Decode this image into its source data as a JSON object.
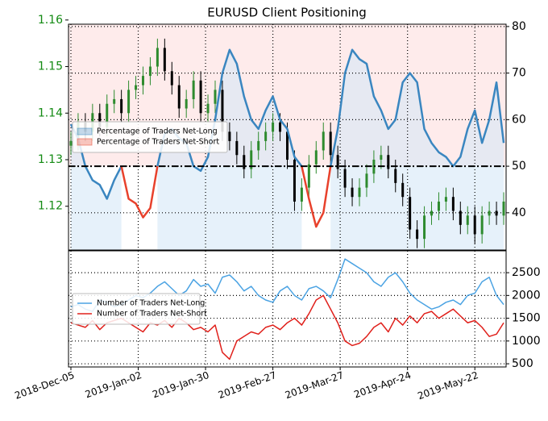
{
  "chart_data": [
    {
      "type": "candlestick",
      "title": "EURUSD Client Positioning",
      "x": [
        0,
        3,
        6,
        9,
        12,
        15,
        18,
        21,
        24,
        27,
        30,
        33,
        36,
        39,
        42,
        45,
        48,
        51,
        54,
        57,
        60,
        63,
        66,
        69,
        72,
        75,
        78,
        81,
        84,
        87,
        90,
        93,
        96,
        99,
        102,
        105,
        108,
        111,
        114,
        117,
        120,
        123,
        126,
        129,
        132,
        135,
        138,
        141,
        144,
        147,
        150,
        153,
        156,
        159,
        162,
        165,
        168,
        171,
        174,
        177,
        180
      ],
      "open": [
        1.133,
        1.134,
        1.138,
        1.136,
        1.14,
        1.137,
        1.142,
        1.143,
        1.14,
        1.145,
        1.146,
        1.148,
        1.15,
        1.154,
        1.149,
        1.146,
        1.141,
        1.143,
        1.147,
        1.14,
        1.142,
        1.145,
        1.136,
        1.134,
        1.131,
        1.128,
        1.132,
        1.134,
        1.136,
        1.138,
        1.136,
        1.13,
        1.121,
        1.124,
        1.129,
        1.132,
        1.136,
        1.131,
        1.128,
        1.124,
        1.122,
        1.124,
        1.127,
        1.13,
        1.131,
        1.128,
        1.125,
        1.122,
        1.115,
        1.113,
        1.118,
        1.119,
        1.121,
        1.122,
        1.119,
        1.116,
        1.118,
        1.114,
        1.118,
        1.119,
        1.118
      ],
      "high": [
        1.136,
        1.14,
        1.14,
        1.142,
        1.142,
        1.144,
        1.145,
        1.145,
        1.147,
        1.148,
        1.15,
        1.152,
        1.156,
        1.156,
        1.151,
        1.148,
        1.145,
        1.149,
        1.149,
        1.144,
        1.147,
        1.147,
        1.138,
        1.136,
        1.133,
        1.134,
        1.136,
        1.138,
        1.14,
        1.14,
        1.138,
        1.132,
        1.126,
        1.131,
        1.134,
        1.138,
        1.138,
        1.133,
        1.13,
        1.126,
        1.126,
        1.129,
        1.132,
        1.133,
        1.133,
        1.13,
        1.127,
        1.124,
        1.117,
        1.12,
        1.121,
        1.123,
        1.124,
        1.124,
        1.121,
        1.12,
        1.12,
        1.12,
        1.121,
        1.121,
        1.123
      ],
      "low": [
        1.131,
        1.132,
        1.134,
        1.134,
        1.135,
        1.135,
        1.14,
        1.138,
        1.138,
        1.143,
        1.144,
        1.146,
        1.148,
        1.147,
        1.144,
        1.139,
        1.139,
        1.141,
        1.138,
        1.138,
        1.14,
        1.134,
        1.132,
        1.129,
        1.126,
        1.126,
        1.13,
        1.132,
        1.134,
        1.134,
        1.128,
        1.119,
        1.119,
        1.122,
        1.127,
        1.13,
        1.129,
        1.126,
        1.122,
        1.12,
        1.12,
        1.122,
        1.125,
        1.128,
        1.126,
        1.123,
        1.12,
        1.113,
        1.111,
        1.111,
        1.116,
        1.117,
        1.119,
        1.117,
        1.114,
        1.114,
        1.112,
        1.112,
        1.116,
        1.116,
        1.116
      ],
      "close": [
        1.134,
        1.138,
        1.136,
        1.14,
        1.137,
        1.142,
        1.143,
        1.14,
        1.145,
        1.146,
        1.148,
        1.15,
        1.154,
        1.149,
        1.146,
        1.141,
        1.143,
        1.147,
        1.14,
        1.142,
        1.145,
        1.136,
        1.134,
        1.131,
        1.128,
        1.132,
        1.134,
        1.136,
        1.138,
        1.136,
        1.13,
        1.121,
        1.124,
        1.129,
        1.132,
        1.136,
        1.131,
        1.128,
        1.124,
        1.122,
        1.124,
        1.127,
        1.13,
        1.131,
        1.128,
        1.125,
        1.122,
        1.115,
        1.113,
        1.118,
        1.119,
        1.121,
        1.122,
        1.119,
        1.116,
        1.118,
        1.114,
        1.118,
        1.119,
        1.118,
        1.121
      ],
      "up_color": "#2e8b2e",
      "down_color": "#000000",
      "ylim": [
        1.1106,
        1.1591
      ],
      "yticks": [
        1.12,
        1.13,
        1.14,
        1.15,
        1.16
      ],
      "ytick_color": "#138a13",
      "y2lim": [
        32,
        80.5
      ],
      "y2ticks": [
        40,
        50,
        60,
        70,
        80
      ],
      "reference_line": 50,
      "short_bg_color": "#fde3e3",
      "long_bg_color": "#d6e8f7",
      "legend": "center left",
      "grid": true,
      "series": [
        {
          "name": "Percentage of Traders Net-Long",
          "color": "#3a86c0",
          "axis": "y2",
          "values": [
            59,
            56,
            50,
            47,
            46,
            43,
            47,
            50,
            null,
            null,
            null,
            null,
            50,
            57,
            58,
            56,
            55,
            50,
            49,
            52,
            60,
            70,
            75,
            72,
            65,
            60,
            58,
            62,
            65,
            60,
            58,
            52,
            50,
            null,
            null,
            null,
            50,
            58,
            70,
            75,
            73,
            72,
            65,
            62,
            58,
            60,
            68,
            70,
            68,
            58,
            55,
            53,
            52,
            50,
            52,
            58,
            62,
            55,
            60,
            68,
            55
          ]
        },
        {
          "name": "Percentage of Traders Net-Short",
          "color": "#e8412c",
          "axis": "y2",
          "values": [
            null,
            null,
            null,
            null,
            null,
            null,
            null,
            50,
            43,
            42,
            39,
            41,
            50,
            null,
            null,
            null,
            null,
            null,
            null,
            null,
            null,
            null,
            null,
            null,
            null,
            null,
            null,
            null,
            null,
            null,
            null,
            null,
            50,
            43,
            37,
            40,
            50,
            null,
            null,
            null,
            null,
            null,
            null,
            null,
            null,
            null,
            null,
            null,
            null,
            null,
            null,
            null,
            null,
            null,
            null,
            null,
            null,
            null,
            null,
            null,
            null
          ]
        }
      ]
    },
    {
      "type": "line",
      "x": [
        0,
        3,
        6,
        9,
        12,
        15,
        18,
        21,
        24,
        27,
        30,
        33,
        36,
        39,
        42,
        45,
        48,
        51,
        54,
        57,
        60,
        63,
        66,
        69,
        72,
        75,
        78,
        81,
        84,
        87,
        90,
        93,
        96,
        99,
        102,
        105,
        108,
        111,
        114,
        117,
        120,
        123,
        126,
        129,
        132,
        135,
        138,
        141,
        144,
        147,
        150,
        153,
        156,
        159,
        162,
        165,
        168,
        171,
        174,
        177,
        180
      ],
      "xlim": [
        -1,
        181
      ],
      "xticks": [
        {
          "value": 0,
          "label": "2018-Dec-05"
        },
        {
          "value": 28,
          "label": "2019-Jan-02"
        },
        {
          "value": 56,
          "label": "2019-Jan-30"
        },
        {
          "value": 84,
          "label": "2019-Feb-27"
        },
        {
          "value": 112,
          "label": "2019-Mar-27"
        },
        {
          "value": 140,
          "label": "2019-Apr-24"
        },
        {
          "value": 168,
          "label": "2019-May-22"
        }
      ],
      "ylim": [
        430,
        2980
      ],
      "yticks": [
        500,
        1000,
        1500,
        2000,
        2500
      ],
      "legend": "center left",
      "grid": true,
      "series": [
        {
          "name": "Number of Traders Net-Long",
          "color": "#4ba3e3",
          "values": [
            1750,
            1800,
            1700,
            1650,
            1900,
            1850,
            1750,
            1800,
            1900,
            2000,
            1950,
            2050,
            2200,
            2300,
            2150,
            2000,
            2100,
            2350,
            2200,
            2250,
            2050,
            2400,
            2450,
            2300,
            2100,
            2200,
            2000,
            1900,
            1850,
            2100,
            2200,
            2000,
            1900,
            2150,
            2200,
            2100,
            1950,
            2350,
            2800,
            2700,
            2600,
            2500,
            2300,
            2200,
            2400,
            2500,
            2300,
            2050,
            1900,
            1800,
            1700,
            1750,
            1850,
            1900,
            1800,
            2000,
            2050,
            2300,
            2400,
            2000,
            1800
          ]
        },
        {
          "name": "Number of Traders Net-Short",
          "color": "#e0201b",
          "values": [
            1400,
            1350,
            1300,
            1450,
            1250,
            1400,
            1450,
            1500,
            1400,
            1300,
            1200,
            1400,
            1350,
            1450,
            1300,
            1500,
            1400,
            1250,
            1300,
            1200,
            1350,
            750,
            600,
            1000,
            1100,
            1200,
            1150,
            1300,
            1350,
            1250,
            1400,
            1500,
            1350,
            1600,
            1900,
            2000,
            1700,
            1400,
            1000,
            900,
            950,
            1100,
            1300,
            1400,
            1200,
            1500,
            1350,
            1550,
            1400,
            1600,
            1650,
            1500,
            1600,
            1700,
            1550,
            1400,
            1450,
            1300,
            1100,
            1150,
            1400
          ]
        }
      ]
    }
  ]
}
